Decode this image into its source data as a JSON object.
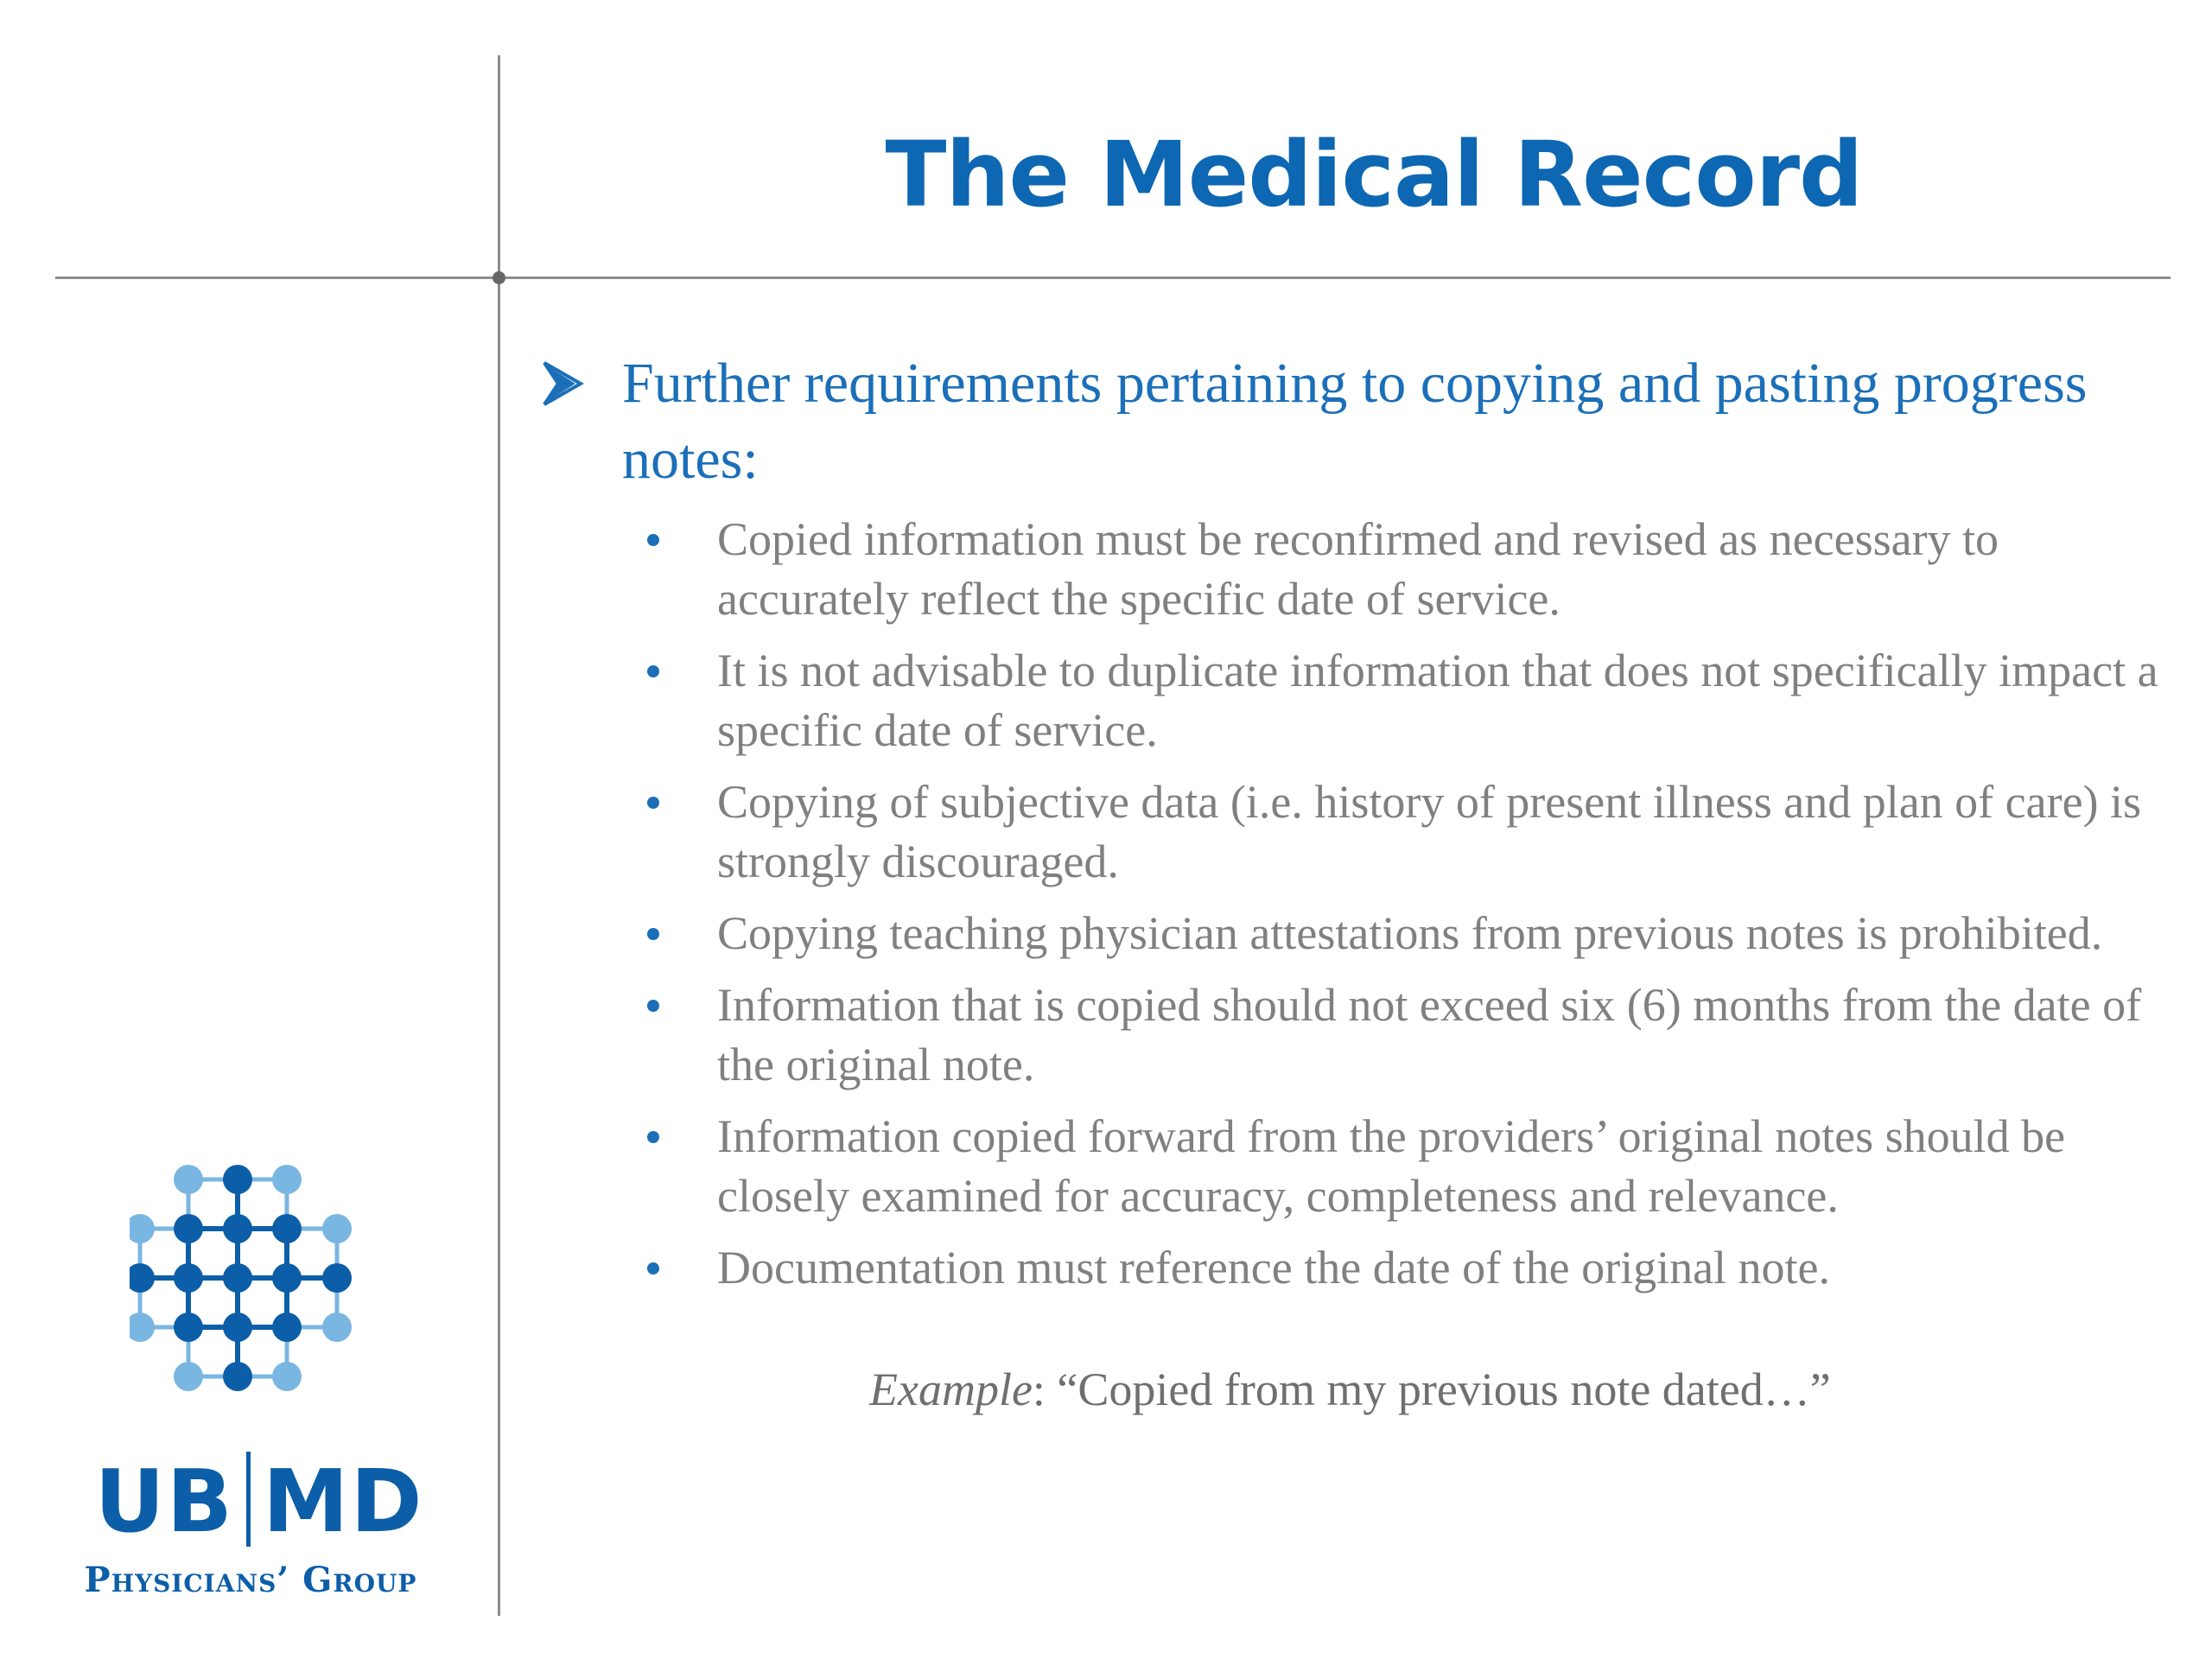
{
  "slide": {
    "title": "The Medical Record",
    "heading": "Further requirements pertaining to copying and pasting progress notes:",
    "bullets": [
      "Copied information must be reconfirmed and revised as necessary to accurately reflect the specific date of service.",
      "It is not advisable to duplicate information that does not specifically impact a specific date of service.",
      "Copying of subjective data (i.e. history of present illness and plan of care) is strongly discouraged.",
      "Copying teaching physician attestations from previous notes is prohibited.",
      "Information that is copied should not exceed six (6) months from the date of the original note.",
      "Information copied forward from the providers’ original notes should be closely examined for accuracy, completeness and relevance.",
      "Documentation must reference the date of the original note."
    ],
    "example": {
      "label": "Example",
      "text": ": “Copied from my previous note dated…”"
    }
  },
  "logo": {
    "left_text": "UB",
    "right_text": "MD",
    "subtitle": "Physicians’ Group"
  },
  "colors": {
    "title_blue": "#0d67b2",
    "heading_blue": "#1b6fb8",
    "body_gray": "#808080",
    "rule_gray": "#8c8c8c",
    "logo_dark": "#0d5ea8",
    "logo_light": "#7ab6e2"
  },
  "icons": {
    "heading_marker": "arrow-bullet-icon",
    "logo_mark": "dot-grid-logo-icon"
  }
}
